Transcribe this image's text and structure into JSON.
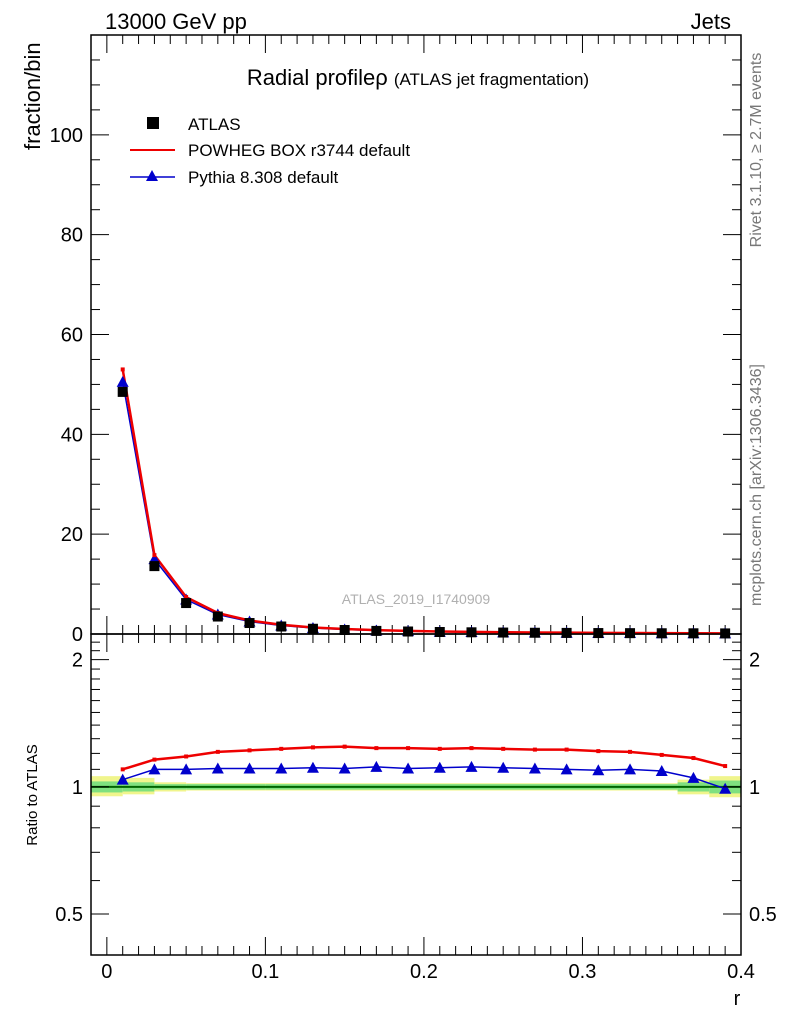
{
  "header": {
    "left": "13000 GeV pp",
    "right": "Jets"
  },
  "side_labels": {
    "rivet": "Rivet 3.1.10, ≥ 2.7M events",
    "mcplots": "mcplots.cern.ch [arXiv:1306.3436]"
  },
  "watermark": "ATLAS_2019_I1740909",
  "colors": {
    "data": "#000000",
    "powheg": "#ee0000",
    "pythia": "#0000cc",
    "band_inner": "#7fe07f",
    "band_outer": "#f0f58c",
    "ratio_line": "#006400"
  },
  "chart_data": [
    {
      "type": "line",
      "title_main": "Radial profile",
      "title_symbol": "ρ",
      "title_sub": "(ATLAS jet fragmentation)",
      "xlabel": "r",
      "ylabel": "fraction/bin",
      "xlim": [
        -0.01,
        0.4
      ],
      "ylim": [
        0,
        120
      ],
      "yticks": [
        0,
        20,
        40,
        60,
        80,
        100
      ],
      "legend_position": "top-left",
      "x": [
        0.01,
        0.03,
        0.05,
        0.07,
        0.09,
        0.11,
        0.13,
        0.15,
        0.17,
        0.19,
        0.21,
        0.23,
        0.25,
        0.27,
        0.29,
        0.31,
        0.33,
        0.35,
        0.37,
        0.39
      ],
      "series": [
        {
          "name": "ATLAS",
          "style": "markers-square",
          "values": [
            48.5,
            13.6,
            6.2,
            3.5,
            2.2,
            1.5,
            1.05,
            0.8,
            0.62,
            0.5,
            0.4,
            0.34,
            0.29,
            0.25,
            0.22,
            0.19,
            0.17,
            0.15,
            0.14,
            0.12
          ]
        },
        {
          "name": "POWHEG BOX r3744 default",
          "style": "line",
          "values": [
            53.0,
            15.8,
            7.4,
            4.2,
            2.7,
            1.85,
            1.3,
            1.0,
            0.77,
            0.62,
            0.49,
            0.42,
            0.36,
            0.31,
            0.27,
            0.23,
            0.2,
            0.18,
            0.16,
            0.13
          ]
        },
        {
          "name": "Pythia 8.308 default",
          "style": "line-triangles",
          "values": [
            50.5,
            15.0,
            6.9,
            3.9,
            2.5,
            1.7,
            1.2,
            0.91,
            0.71,
            0.57,
            0.45,
            0.39,
            0.33,
            0.29,
            0.25,
            0.21,
            0.19,
            0.16,
            0.15,
            0.12
          ]
        }
      ]
    },
    {
      "type": "line",
      "ylabel": "Ratio to ATLAS",
      "xlabel": "r",
      "xlim": [
        -0.01,
        0.4
      ],
      "ylim": [
        0.4,
        2.3
      ],
      "ytick_labels": [
        "0.5",
        "1",
        "2"
      ],
      "ytick_values": [
        0.5,
        1,
        2
      ],
      "xticks": [
        0,
        0.1,
        0.2,
        0.3,
        0.4
      ],
      "xtick_labels": [
        "0",
        "0.1",
        "0.2",
        "0.3",
        "0.4"
      ],
      "reference": 1.0,
      "band_edges": [
        -0.01,
        0.01,
        0.03,
        0.05,
        0.1,
        0.36,
        0.38,
        0.4
      ],
      "band_inner": [
        [
          0.97,
          1.03
        ],
        [
          0.975,
          1.025
        ],
        [
          0.985,
          1.015
        ],
        [
          0.985,
          1.015
        ],
        [
          0.985,
          1.015
        ],
        [
          0.975,
          1.025
        ],
        [
          0.965,
          1.035
        ]
      ],
      "band_outer": [
        [
          0.95,
          1.06
        ],
        [
          0.96,
          1.05
        ],
        [
          0.975,
          1.025
        ],
        [
          0.98,
          1.02
        ],
        [
          0.98,
          1.02
        ],
        [
          0.96,
          1.04
        ],
        [
          0.945,
          1.06
        ]
      ],
      "x": [
        0.01,
        0.03,
        0.05,
        0.07,
        0.09,
        0.11,
        0.13,
        0.15,
        0.17,
        0.19,
        0.21,
        0.23,
        0.25,
        0.27,
        0.29,
        0.31,
        0.33,
        0.35,
        0.37,
        0.39
      ],
      "series": [
        {
          "name": "POWHEG BOX r3744 default",
          "values": [
            1.1,
            1.16,
            1.18,
            1.21,
            1.22,
            1.23,
            1.24,
            1.245,
            1.235,
            1.235,
            1.23,
            1.235,
            1.23,
            1.225,
            1.225,
            1.215,
            1.21,
            1.19,
            1.17,
            1.12
          ]
        },
        {
          "name": "Pythia 8.308 default",
          "values": [
            1.04,
            1.1,
            1.1,
            1.105,
            1.105,
            1.105,
            1.11,
            1.105,
            1.115,
            1.105,
            1.11,
            1.115,
            1.11,
            1.105,
            1.1,
            1.095,
            1.1,
            1.09,
            1.05,
            0.99
          ]
        }
      ]
    }
  ]
}
